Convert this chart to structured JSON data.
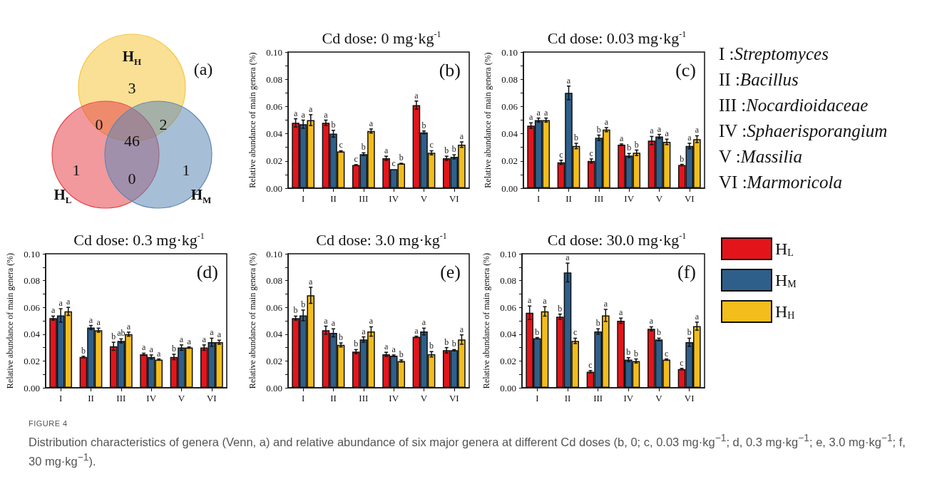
{
  "chart_data": [
    {
      "type": "other",
      "annotations": [
        "(a)",
        "H$_{H}$",
        "H$_{L}$",
        "H$_{M}$",
        "3",
        "0",
        "2",
        "46",
        "1",
        "0",
        "1"
      ]
    },
    {
      "type": "bar",
      "title": "Cd dose: 0 mg·kg$^{-1}$",
      "ylabel": "Relative abundance of main genera (%)",
      "annotations": [
        "(b)"
      ],
      "categories": [
        "I",
        "II",
        "III",
        "IV",
        "V",
        "VI"
      ],
      "ylim": [
        0,
        0.1
      ],
      "yticks": [
        {
          "value": 0,
          "label": "0.00"
        },
        {
          "value": 0.01,
          "label": null
        },
        {
          "value": 0.02,
          "label": "0.02"
        },
        {
          "value": 0.03,
          "label": null
        },
        {
          "value": 0.04,
          "label": "0.04"
        },
        {
          "value": 0.05,
          "label": null
        },
        {
          "value": 0.06,
          "label": "0.06"
        },
        {
          "value": 0.07,
          "label": null
        },
        {
          "value": 0.08,
          "label": "0.08"
        },
        {
          "value": 0.09,
          "label": null
        },
        {
          "value": 0.1,
          "label": "0.10"
        }
      ],
      "series": [
        {
          "color": "#e3151b",
          "values": [
            0.048,
            0.048,
            0.017,
            0.022,
            0.061,
            0.022
          ],
          "errors": [
            0.003,
            0.002,
            0.0003,
            0.0015,
            0.003,
            0.0015
          ],
          "value_labels": [
            "a",
            "a",
            "c",
            "a",
            "a",
            "b"
          ]
        },
        {
          "color": "#2e5f8a",
          "values": [
            0.047,
            0.04,
            0.025,
            0.014,
            0.041,
            0.023
          ],
          "errors": [
            0.003,
            0.0025,
            0.001,
            null,
            0.001,
            0.0015
          ],
          "value_labels": [
            "a",
            "b",
            "b",
            "c",
            "b",
            "b"
          ]
        },
        {
          "color": "#f3bd1c",
          "values": [
            0.05,
            0.027,
            0.042,
            0.018,
            0.026,
            0.032
          ],
          "errors": [
            0.004,
            0.0005,
            0.0015,
            0.0003,
            0.0015,
            0.002
          ],
          "value_labels": [
            "a",
            "c",
            "a",
            "b",
            "c",
            "a"
          ]
        }
      ]
    },
    {
      "type": "bar",
      "title": "Cd dose: 0.03 mg·kg$^{-1}$",
      "ylabel": "Relative abundance of main genera (%)",
      "annotations": [
        "(c)"
      ],
      "categories": [
        "I",
        "II",
        "III",
        "IV",
        "V",
        "VI"
      ],
      "ylim": [
        0,
        0.1
      ],
      "yticks": [
        {
          "value": 0,
          "label": "0.00"
        },
        {
          "value": 0.01,
          "label": null
        },
        {
          "value": 0.02,
          "label": "0.02"
        },
        {
          "value": 0.03,
          "label": null
        },
        {
          "value": 0.04,
          "label": "0.04"
        },
        {
          "value": 0.05,
          "label": null
        },
        {
          "value": 0.06,
          "label": "0.06"
        },
        {
          "value": 0.07,
          "label": null
        },
        {
          "value": 0.08,
          "label": "0.08"
        },
        {
          "value": 0.09,
          "label": null
        },
        {
          "value": 0.1,
          "label": "0.10"
        }
      ],
      "series": [
        {
          "color": "#e3151b",
          "values": [
            0.046,
            0.019,
            0.02,
            0.032,
            0.035,
            0.017
          ],
          "errors": [
            0.002,
            0.0015,
            0.0015,
            0.0005,
            0.003,
            0.0005
          ],
          "value_labels": [
            "a",
            "c",
            "c",
            "a",
            "a",
            "b"
          ]
        },
        {
          "color": "#2e5f8a",
          "values": [
            0.05,
            0.07,
            0.037,
            0.024,
            0.038,
            0.031
          ],
          "errors": [
            0.0015,
            0.005,
            0.002,
            0.0015,
            0.0015,
            0.002
          ],
          "value_labels": [
            "a",
            "a",
            "b",
            "b",
            "a",
            "a"
          ]
        },
        {
          "color": "#f3bd1c",
          "values": [
            0.05,
            0.031,
            0.043,
            0.026,
            0.034,
            0.036
          ],
          "errors": [
            0.0015,
            0.002,
            0.0015,
            0.002,
            0.002,
            0.0025
          ],
          "value_labels": [
            "a",
            "b",
            "a",
            "b",
            "a",
            "a"
          ]
        }
      ]
    },
    {
      "type": "other",
      "annotations": [
        "I :Streptomyces",
        "II :Bacillus",
        "III :Nocardioidaceae",
        "IV :Sphaerisporangium",
        "V :Massilia",
        "VI :Marmoricola"
      ]
    },
    {
      "type": "bar",
      "title": "Cd dose: 0.3 mg·kg$^{-1}$",
      "ylabel": "Relative abundance of main genera (%)",
      "annotations": [
        "(d)"
      ],
      "categories": [
        "I",
        "II",
        "III",
        "IV",
        "V",
        "VI"
      ],
      "ylim": [
        0,
        0.1
      ],
      "yticks": [
        {
          "value": 0,
          "label": "0.00"
        },
        {
          "value": 0.01,
          "label": null
        },
        {
          "value": 0.02,
          "label": "0.02"
        },
        {
          "value": 0.03,
          "label": null
        },
        {
          "value": 0.04,
          "label": "0.04"
        },
        {
          "value": 0.05,
          "label": null
        },
        {
          "value": 0.06,
          "label": "0.06"
        },
        {
          "value": 0.07,
          "label": null
        },
        {
          "value": 0.08,
          "label": "0.08"
        },
        {
          "value": 0.09,
          "label": null
        },
        {
          "value": 0.1,
          "label": "0.10"
        }
      ],
      "series": [
        {
          "color": "#e3151b",
          "values": [
            0.052,
            0.023,
            0.031,
            0.025,
            0.023,
            0.03
          ],
          "errors": [
            0.0015,
            0.0005,
            0.003,
            0.0008,
            0.002,
            0.002
          ],
          "value_labels": [
            "a",
            "b",
            "b",
            "a",
            "b",
            "a"
          ]
        },
        {
          "color": "#2e5f8a",
          "values": [
            0.054,
            0.045,
            0.035,
            0.023,
            0.03,
            0.034
          ],
          "errors": [
            0.005,
            0.0015,
            0.0015,
            0.0015,
            0.002,
            0.003
          ],
          "value_labels": [
            "a",
            "a",
            "ab",
            "a",
            "a",
            "a"
          ]
        },
        {
          "color": "#f3bd1c",
          "values": [
            0.057,
            0.043,
            0.04,
            0.021,
            0.03,
            0.034
          ],
          "errors": [
            0.003,
            0.0015,
            0.0015,
            0.0005,
            0.0005,
            0.0015
          ],
          "value_labels": [
            "a",
            "a",
            "a",
            "a",
            "a",
            "a"
          ]
        }
      ]
    },
    {
      "type": "bar",
      "title": "Cd dose: 3.0 mg·kg$^{-1}$",
      "ylabel": "Relative abundance of main genera (%)",
      "annotations": [
        "(e)"
      ],
      "categories": [
        "I",
        "II",
        "III",
        "IV",
        "V",
        "VI"
      ],
      "ylim": [
        0,
        0.1
      ],
      "yticks": [
        {
          "value": 0,
          "label": "0.00"
        },
        {
          "value": 0.01,
          "label": null
        },
        {
          "value": 0.02,
          "label": "0.02"
        },
        {
          "value": 0.03,
          "label": null
        },
        {
          "value": 0.04,
          "label": "0.04"
        },
        {
          "value": 0.05,
          "label": null
        },
        {
          "value": 0.06,
          "label": "0.06"
        },
        {
          "value": 0.07,
          "label": null
        },
        {
          "value": 0.08,
          "label": "0.08"
        },
        {
          "value": 0.09,
          "label": null
        },
        {
          "value": 0.1,
          "label": "0.10"
        }
      ],
      "series": [
        {
          "color": "#e3151b",
          "values": [
            0.052,
            0.043,
            0.027,
            0.025,
            0.038,
            0.028
          ],
          "errors": [
            0.0015,
            0.003,
            0.0015,
            0.0015,
            0.0005,
            0.002
          ],
          "value_labels": [
            "b",
            "a",
            "b",
            "a",
            "a",
            "b"
          ]
        },
        {
          "color": "#2e5f8a",
          "values": [
            0.054,
            0.041,
            0.036,
            0.024,
            0.042,
            0.028
          ],
          "errors": [
            0.004,
            0.003,
            0.002,
            0.0005,
            0.0025,
            0.0005
          ],
          "value_labels": [
            "b",
            "a",
            "a",
            "a",
            "a",
            "b"
          ]
        },
        {
          "color": "#f3bd1c",
          "values": [
            0.069,
            0.032,
            0.042,
            0.02,
            0.025,
            0.036
          ],
          "errors": [
            0.006,
            0.0015,
            0.0035,
            0.0008,
            0.002,
            0.0035
          ],
          "value_labels": [
            "a",
            "b",
            "a",
            "b",
            "b",
            "a"
          ]
        }
      ]
    },
    {
      "type": "bar",
      "title": "Cd dose: 30.0 mg·kg$^{-1}$",
      "ylabel": "Relative abundance of main genera (%)",
      "annotations": [
        "(f)"
      ],
      "legend": "right",
      "categories": [
        "I",
        "II",
        "III",
        "IV",
        "V",
        "VI"
      ],
      "ylim": [
        0,
        0.1
      ],
      "yticks": [
        {
          "value": 0,
          "label": "0.00"
        },
        {
          "value": 0.01,
          "label": null
        },
        {
          "value": 0.02,
          "label": "0.02"
        },
        {
          "value": 0.03,
          "label": null
        },
        {
          "value": 0.04,
          "label": "0.04"
        },
        {
          "value": 0.05,
          "label": null
        },
        {
          "value": 0.06,
          "label": "0.06"
        },
        {
          "value": 0.07,
          "label": null
        },
        {
          "value": 0.08,
          "label": "0.08"
        },
        {
          "value": 0.09,
          "label": null
        },
        {
          "value": 0.1,
          "label": "0.10"
        }
      ],
      "series": [
        {
          "name": "H$_{L}$",
          "color": "#e3151b",
          "values": [
            0.056,
            0.053,
            0.012,
            0.05,
            0.044,
            0.014
          ],
          "errors": [
            0.005,
            0.002,
            0.0008,
            0.002,
            0.0015,
            0.0005
          ],
          "value_labels": [
            "a",
            "b",
            "c",
            "a",
            "a",
            "c"
          ]
        },
        {
          "name": "H$_{M}$",
          "color": "#2e5f8a",
          "values": [
            0.037,
            0.086,
            0.042,
            0.021,
            0.036,
            0.034
          ],
          "errors": [
            0.0005,
            0.007,
            0.002,
            0.0015,
            0.001,
            0.003
          ],
          "value_labels": [
            "b",
            "a",
            "b",
            "b",
            "b",
            "b"
          ]
        },
        {
          "name": "H$_{H}$",
          "color": "#f3bd1c",
          "values": [
            0.057,
            0.035,
            0.054,
            0.02,
            0.021,
            0.046
          ],
          "errors": [
            0.0035,
            0.002,
            0.0045,
            0.0015,
            0.0005,
            0.003
          ],
          "value_labels": [
            "a",
            "c",
            "a",
            "b",
            "c",
            "a"
          ]
        }
      ]
    },
    {
      "type": "other",
      "title": "FIGURE 4",
      "annotations": [
        "Distribution characteristics of genera (Venn, a) and relative abundance of six major genera at different Cd doses (b, 0; c, 0.03 mg·kg$^{−1}$; d, 0.3 mg·kg$^{−1}$; e, 3.0 mg·kg$^{−1}$; f, 30 mg·kg$^{−1}$)."
      ]
    }
  ]
}
